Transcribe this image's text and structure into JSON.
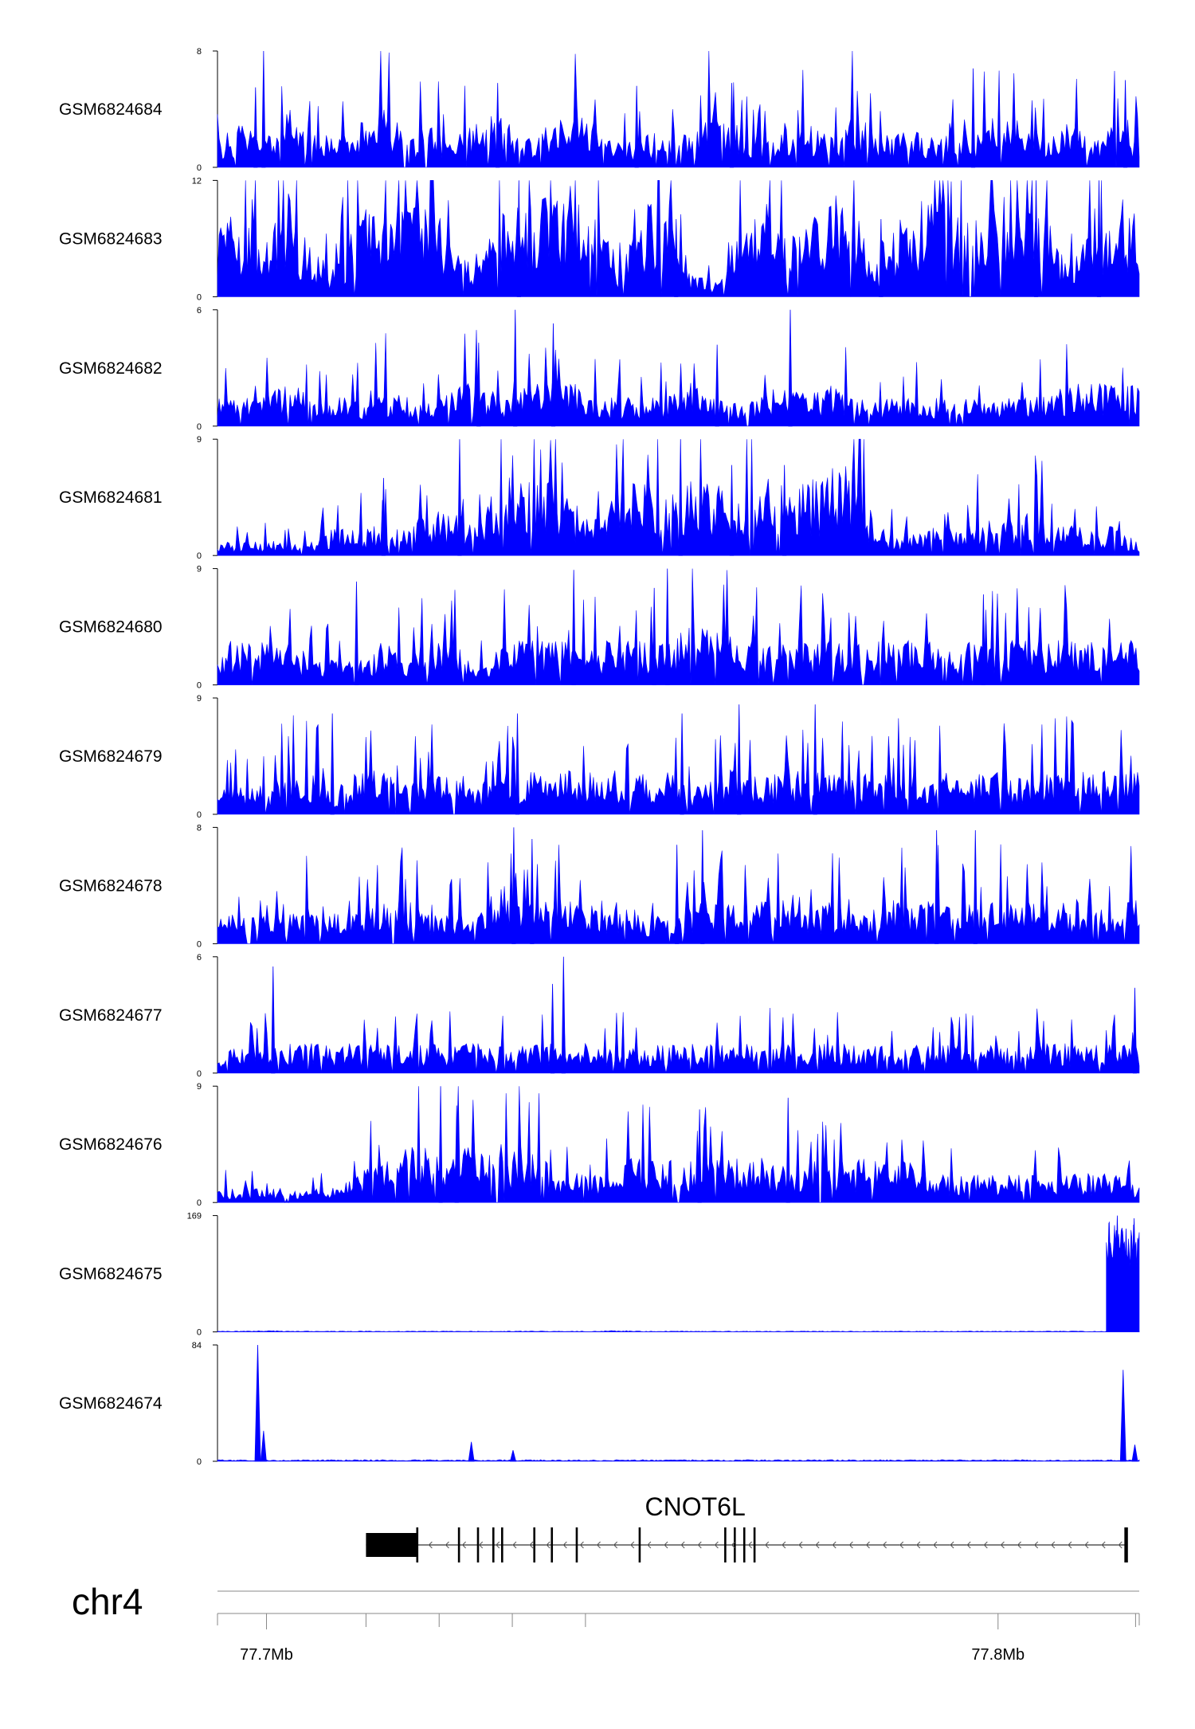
{
  "colors": {
    "signal": "#0000ff",
    "axis": "#000000",
    "gene": "#000000",
    "rule": "#888888"
  },
  "chart_data": {
    "type": "area",
    "title": "",
    "xlabel": "",
    "ylabel": "",
    "chromosome": "chr4",
    "xlim": [
      77.6933,
      77.8193
    ],
    "x_unit": "Mb",
    "x_ticks": [
      {
        "value": 77.7,
        "label": "77.7Mb"
      },
      {
        "value": 77.8,
        "label": "77.8Mb"
      }
    ],
    "series": [
      {
        "name": "GSM6824684",
        "ymax": 8,
        "ymax_label": "8",
        "ymin_label": "0",
        "profile": [
          2,
          3,
          2,
          4,
          3,
          2,
          3,
          5,
          2,
          3,
          2,
          3,
          4,
          2,
          3,
          5,
          3,
          2,
          2,
          3,
          2,
          4,
          3,
          2,
          3,
          3,
          2,
          4,
          2,
          3,
          2,
          3,
          2,
          4,
          3,
          2,
          3,
          2,
          3,
          2
        ],
        "peaks": [
          [
            77.6996,
            8
          ],
          [
            77.7966,
            6.8
          ],
          [
            77.8174,
            6.0
          ],
          [
            77.7316,
            5.8
          ],
          [
            77.6985,
            5.5
          ],
          [
            77.7636,
            5.8
          ],
          [
            77.7506,
            5.6
          ]
        ]
      },
      {
        "name": "GSM6824683",
        "ymax": 12,
        "ymax_label": "12",
        "ymin_label": "0",
        "profile": [
          5,
          6,
          4,
          7,
          3,
          2,
          6,
          7,
          6,
          7,
          3,
          2,
          7,
          6,
          7,
          6,
          7,
          2,
          6,
          7,
          2,
          1,
          6,
          7,
          4,
          5,
          7,
          6,
          2,
          6,
          7,
          6,
          5,
          7,
          6,
          7,
          2,
          6,
          7,
          6
        ],
        "peaks": [
          [
            77.7345,
            12
          ],
          [
            77.8052,
            12
          ],
          [
            77.8138,
            12
          ],
          [
            77.756,
            8
          ],
          [
            77.784,
            8
          ]
        ]
      },
      {
        "name": "GSM6824682",
        "ymax": 6,
        "ymax_label": "6",
        "ymin_label": "0",
        "profile": [
          2,
          2,
          2,
          3,
          2,
          2,
          2,
          3,
          2,
          2,
          3,
          3,
          2,
          3,
          3,
          3,
          2,
          2,
          2,
          2,
          3,
          2,
          2,
          2,
          3,
          2,
          3,
          2,
          2,
          2,
          2,
          2,
          2,
          2,
          2,
          2,
          3,
          3,
          3,
          3
        ],
        "peaks": [
          [
            77.734,
            6
          ],
          [
            77.7716,
            6
          ],
          [
            77.7392,
            5.3
          ],
          [
            77.729,
            4.3
          ],
          [
            77.7616,
            4.2
          ]
        ]
      },
      {
        "name": "GSM6824681",
        "ymax": 9,
        "ymax_label": "9",
        "ymin_label": "0",
        "profile": [
          1,
          1,
          1,
          1,
          1,
          2,
          2,
          2,
          2,
          3,
          3,
          3,
          5,
          6,
          5,
          4,
          3,
          5,
          5,
          4,
          5,
          5,
          4,
          6,
          5,
          5,
          6,
          6,
          2,
          1,
          2,
          2,
          3,
          2,
          3,
          3,
          2,
          2,
          2,
          1
        ],
        "peaks": [
          [
            77.7264,
            9
          ],
          [
            77.7566,
            9
          ],
          [
            77.7636,
            7
          ],
          [
            77.7708,
            7
          ],
          [
            77.716,
            6
          ]
        ]
      },
      {
        "name": "GSM6824680",
        "ymax": 9,
        "ymax_label": "9",
        "ymin_label": "0",
        "profile": [
          3,
          3,
          3,
          3,
          2,
          2,
          2,
          3,
          2,
          3,
          3,
          1,
          3,
          3,
          3,
          3,
          3,
          3,
          3,
          3,
          4,
          4,
          3,
          3,
          3,
          3,
          3,
          3,
          3,
          3,
          3,
          3,
          3,
          3,
          3,
          3,
          3,
          3,
          3,
          3
        ],
        "peaks": [
          [
            77.7548,
            9
          ],
          [
            77.742,
            8.9
          ],
          [
            77.753,
            7.5
          ],
          [
            77.7123,
            8.0
          ],
          [
            77.798,
            7.0
          ]
        ]
      },
      {
        "name": "GSM6824679",
        "ymax": 9,
        "ymax_label": "9",
        "ymin_label": "0",
        "profile": [
          2,
          2,
          2,
          3,
          3,
          2,
          3,
          3,
          2,
          3,
          3,
          2,
          3,
          3,
          3,
          3,
          3,
          3,
          3,
          3,
          2,
          3,
          3,
          3,
          3,
          3,
          3,
          3,
          3,
          3,
          3,
          3,
          3,
          3,
          3,
          3,
          3,
          3,
          3,
          3
        ],
        "peaks": [
          [
            77.7646,
            8.5
          ],
          [
            77.775,
            8.5
          ],
          [
            77.709,
            7.8
          ],
          [
            77.7343,
            7.8
          ],
          [
            77.7568,
            7.8
          ]
        ]
      },
      {
        "name": "GSM6824678",
        "ymax": 8,
        "ymax_label": "8",
        "ymin_label": "0",
        "profile": [
          2,
          2,
          2,
          2,
          3,
          2,
          2,
          3,
          3,
          2,
          2,
          2,
          3,
          3,
          3,
          3,
          3,
          3,
          2,
          2,
          3,
          3,
          3,
          3,
          3,
          2,
          3,
          2,
          3,
          3,
          3,
          3,
          3,
          3,
          3,
          3,
          3,
          3,
          3,
          3
        ],
        "peaks": [
          [
            77.7338,
            8
          ],
          [
            77.7363,
            7.2
          ],
          [
            77.7596,
            7.8
          ],
          [
            77.7916,
            7.8
          ],
          [
            77.7969,
            7.8
          ],
          [
            77.7561,
            6.8
          ]
        ]
      },
      {
        "name": "GSM6824677",
        "ymax": 6,
        "ymax_label": "6",
        "ymin_label": "0",
        "profile": [
          1,
          2,
          2,
          2,
          2,
          2,
          2,
          2,
          2,
          2,
          2,
          2,
          2,
          2,
          2,
          2,
          2,
          2,
          2,
          2,
          2,
          2,
          2,
          2,
          2,
          2,
          2,
          2,
          2,
          2,
          2,
          2,
          2,
          2,
          2,
          2,
          2,
          2,
          2,
          2
        ],
        "peaks": [
          [
            77.7406,
            6
          ],
          [
            77.7009,
            5.5
          ],
          [
            77.8187,
            4.4
          ],
          [
            77.7391,
            4.6
          ]
        ]
      },
      {
        "name": "GSM6824676",
        "ymax": 9,
        "ymax_label": "9",
        "ymin_label": "0",
        "profile": [
          1,
          1,
          1,
          1,
          1,
          1,
          2,
          3,
          4,
          4,
          4,
          4,
          4,
          4,
          3,
          2,
          2,
          3,
          3,
          3,
          3,
          3,
          3,
          3,
          3,
          3,
          3,
          3,
          3,
          3,
          2,
          2,
          2,
          2,
          2,
          2,
          2,
          2,
          2,
          1
        ],
        "peaks": [
          [
            77.7238,
            9
          ],
          [
            77.726,
            7.5
          ],
          [
            77.7713,
            8.1
          ],
          [
            77.7592,
            7.2
          ]
        ]
      },
      {
        "name": "GSM6824675",
        "ymax": 169,
        "ymax_label": "169",
        "ymin_label": "0",
        "profile": [
          1,
          1,
          2,
          1,
          1,
          1,
          1,
          1,
          1,
          1,
          1,
          1,
          1,
          1,
          1,
          1,
          1,
          2,
          1,
          1,
          1,
          1,
          1,
          1,
          1,
          1,
          1,
          1,
          1,
          1,
          1,
          1,
          1,
          1,
          1,
          1,
          1,
          1,
          1,
          1
        ],
        "peaks": [
          [
            77.8152,
            160
          ],
          [
            77.8163,
            169
          ],
          [
            77.8175,
            150
          ],
          [
            77.8186,
            165
          ],
          [
            77.817,
            140
          ]
        ]
      },
      {
        "name": "GSM6824674",
        "ymax": 84,
        "ymax_label": "84",
        "ymin_label": "0",
        "profile": [
          1,
          1,
          1,
          1,
          1,
          1,
          1,
          1,
          1,
          1,
          1,
          1,
          1,
          1,
          1,
          1,
          1,
          1,
          1,
          1,
          1,
          1,
          1,
          1,
          1,
          1,
          1,
          1,
          1,
          1,
          1,
          1,
          1,
          1,
          1,
          1,
          1,
          1,
          1,
          1
        ],
        "peaks": [
          [
            77.6988,
            84
          ],
          [
            77.6996,
            22
          ],
          [
            77.728,
            14
          ],
          [
            77.7337,
            8
          ],
          [
            77.8171,
            66
          ],
          [
            77.8187,
            12
          ]
        ]
      }
    ],
    "gene": {
      "name": "CNOT6L",
      "strand": "-",
      "start": 77.7136,
      "end": 77.8176,
      "thick_block": [
        77.7136,
        77.7206
      ],
      "exons": [
        77.7206,
        77.7263,
        77.7289,
        77.731,
        77.7322,
        77.7366,
        77.739,
        77.7424,
        77.751,
        77.7627,
        77.764,
        77.7653,
        77.7667,
        77.8174,
        77.8176
      ]
    }
  }
}
